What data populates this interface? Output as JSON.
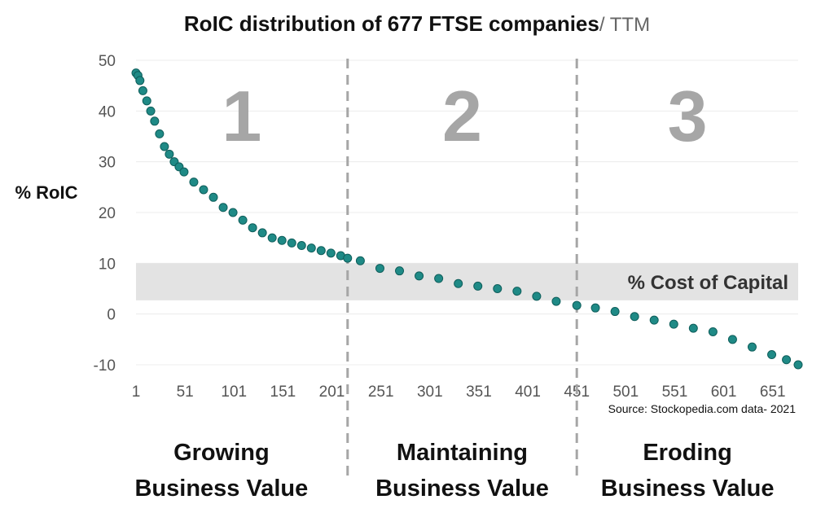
{
  "chart_data": {
    "type": "scatter",
    "title": "RoIC distribution of 677 FTSE companies",
    "title_suffix": "/ TTM",
    "ylabel": "% RoIC",
    "xlabel": "",
    "ylim": [
      -10,
      50
    ],
    "xlim": [
      1,
      677
    ],
    "y_ticks": [
      "50",
      "40",
      "30",
      "20",
      "10",
      "0",
      "-10"
    ],
    "x_ticks": [
      "1",
      "51",
      "101",
      "151",
      "201",
      "251",
      "301",
      "351",
      "401",
      "451",
      "501",
      "551",
      "601",
      "651"
    ],
    "grid": "horizontal",
    "marker_color": "#1f8a86",
    "band": {
      "label": "% Cost of Capital",
      "from": 2.7,
      "to": 10,
      "color": "#e3e3e3"
    },
    "dividers_at_rank": [
      217,
      451
    ],
    "zones": [
      {
        "number": "1",
        "line1": "Growing",
        "line2": "Business Value"
      },
      {
        "number": "2",
        "line1": "Maintaining",
        "line2": "Business Value"
      },
      {
        "number": "3",
        "line1": "Eroding",
        "line2": "Business Value"
      }
    ],
    "source": "Source: Stockopedia.com data- 2021",
    "series": [
      {
        "x": [
          1,
          3,
          5,
          8,
          12,
          16,
          20,
          25,
          30,
          35,
          40,
          45,
          50,
          60,
          70,
          80,
          90,
          100,
          110,
          120,
          130,
          140,
          150,
          160,
          170,
          180,
          190,
          200,
          210,
          217,
          230,
          250,
          270,
          290,
          310,
          330,
          350,
          370,
          390,
          410,
          430,
          451,
          470,
          490,
          510,
          530,
          550,
          570,
          590,
          610,
          630,
          650,
          665,
          677
        ],
        "y": [
          47.5,
          47,
          46,
          44,
          42,
          40,
          38,
          35.5,
          33,
          31.5,
          30,
          29,
          28,
          26,
          24.5,
          23,
          21,
          20,
          18.5,
          17,
          16,
          15,
          14.5,
          14,
          13.5,
          13,
          12.5,
          12,
          11.5,
          11,
          10.5,
          9,
          8.5,
          7.5,
          7,
          6,
          5.5,
          5,
          4.5,
          3.5,
          2.5,
          1.7,
          1.2,
          0.5,
          -0.5,
          -1.2,
          -2,
          -2.8,
          -3.5,
          -5,
          -6.5,
          -8,
          -9,
          -10
        ]
      }
    ]
  }
}
